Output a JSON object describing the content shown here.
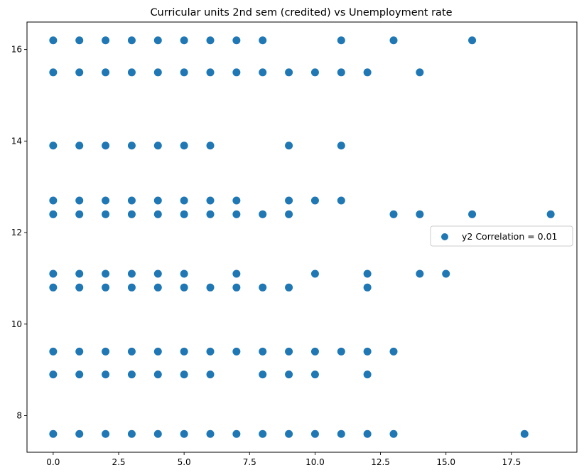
{
  "chart_data": {
    "type": "scatter",
    "title": "Curricular units 2nd sem (credited) vs Unemployment rate",
    "xlabel": "",
    "ylabel": "",
    "xlim": [
      -1,
      20
    ],
    "ylim": [
      7.2,
      16.6
    ],
    "x_ticks": [
      0.0,
      2.5,
      5.0,
      7.5,
      10.0,
      12.5,
      15.0,
      17.5
    ],
    "x_tick_labels": [
      "0.0",
      "2.5",
      "5.0",
      "7.5",
      "10.0",
      "12.5",
      "15.0",
      "17.5"
    ],
    "y_ticks": [
      8,
      10,
      12,
      14,
      16
    ],
    "y_tick_labels": [
      "8",
      "10",
      "12",
      "14",
      "16"
    ],
    "grid": false,
    "legend_position": "center-right",
    "marker_color": "#1f77b4",
    "series": [
      {
        "name": "y2 Correlation = 0.01",
        "points": [
          [
            0,
            16.2
          ],
          [
            1,
            16.2
          ],
          [
            2,
            16.2
          ],
          [
            3,
            16.2
          ],
          [
            4,
            16.2
          ],
          [
            5,
            16.2
          ],
          [
            6,
            16.2
          ],
          [
            7,
            16.2
          ],
          [
            8,
            16.2
          ],
          [
            11,
            16.2
          ],
          [
            13,
            16.2
          ],
          [
            16,
            16.2
          ],
          [
            0,
            15.5
          ],
          [
            1,
            15.5
          ],
          [
            2,
            15.5
          ],
          [
            3,
            15.5
          ],
          [
            4,
            15.5
          ],
          [
            5,
            15.5
          ],
          [
            6,
            15.5
          ],
          [
            7,
            15.5
          ],
          [
            8,
            15.5
          ],
          [
            9,
            15.5
          ],
          [
            10,
            15.5
          ],
          [
            11,
            15.5
          ],
          [
            12,
            15.5
          ],
          [
            14,
            15.5
          ],
          [
            0,
            13.9
          ],
          [
            1,
            13.9
          ],
          [
            2,
            13.9
          ],
          [
            3,
            13.9
          ],
          [
            4,
            13.9
          ],
          [
            5,
            13.9
          ],
          [
            6,
            13.9
          ],
          [
            9,
            13.9
          ],
          [
            11,
            13.9
          ],
          [
            0,
            12.7
          ],
          [
            1,
            12.7
          ],
          [
            2,
            12.7
          ],
          [
            3,
            12.7
          ],
          [
            4,
            12.7
          ],
          [
            5,
            12.7
          ],
          [
            6,
            12.7
          ],
          [
            7,
            12.7
          ],
          [
            9,
            12.7
          ],
          [
            10,
            12.7
          ],
          [
            11,
            12.7
          ],
          [
            0,
            12.4
          ],
          [
            1,
            12.4
          ],
          [
            2,
            12.4
          ],
          [
            3,
            12.4
          ],
          [
            4,
            12.4
          ],
          [
            5,
            12.4
          ],
          [
            6,
            12.4
          ],
          [
            7,
            12.4
          ],
          [
            8,
            12.4
          ],
          [
            9,
            12.4
          ],
          [
            13,
            12.4
          ],
          [
            14,
            12.4
          ],
          [
            16,
            12.4
          ],
          [
            19,
            12.4
          ],
          [
            0,
            11.1
          ],
          [
            1,
            11.1
          ],
          [
            2,
            11.1
          ],
          [
            3,
            11.1
          ],
          [
            4,
            11.1
          ],
          [
            5,
            11.1
          ],
          [
            7,
            11.1
          ],
          [
            10,
            11.1
          ],
          [
            12,
            11.1
          ],
          [
            14,
            11.1
          ],
          [
            15,
            11.1
          ],
          [
            0,
            10.8
          ],
          [
            1,
            10.8
          ],
          [
            2,
            10.8
          ],
          [
            3,
            10.8
          ],
          [
            4,
            10.8
          ],
          [
            5,
            10.8
          ],
          [
            6,
            10.8
          ],
          [
            7,
            10.8
          ],
          [
            8,
            10.8
          ],
          [
            9,
            10.8
          ],
          [
            12,
            10.8
          ],
          [
            0,
            9.4
          ],
          [
            1,
            9.4
          ],
          [
            2,
            9.4
          ],
          [
            3,
            9.4
          ],
          [
            4,
            9.4
          ],
          [
            5,
            9.4
          ],
          [
            6,
            9.4
          ],
          [
            7,
            9.4
          ],
          [
            8,
            9.4
          ],
          [
            9,
            9.4
          ],
          [
            10,
            9.4
          ],
          [
            11,
            9.4
          ],
          [
            12,
            9.4
          ],
          [
            13,
            9.4
          ],
          [
            0,
            8.9
          ],
          [
            1,
            8.9
          ],
          [
            2,
            8.9
          ],
          [
            3,
            8.9
          ],
          [
            4,
            8.9
          ],
          [
            5,
            8.9
          ],
          [
            6,
            8.9
          ],
          [
            8,
            8.9
          ],
          [
            9,
            8.9
          ],
          [
            10,
            8.9
          ],
          [
            12,
            8.9
          ],
          [
            0,
            7.6
          ],
          [
            1,
            7.6
          ],
          [
            2,
            7.6
          ],
          [
            3,
            7.6
          ],
          [
            4,
            7.6
          ],
          [
            5,
            7.6
          ],
          [
            6,
            7.6
          ],
          [
            7,
            7.6
          ],
          [
            8,
            7.6
          ],
          [
            9,
            7.6
          ],
          [
            10,
            7.6
          ],
          [
            11,
            7.6
          ],
          [
            12,
            7.6
          ],
          [
            13,
            7.6
          ],
          [
            18,
            7.6
          ]
        ]
      }
    ]
  }
}
